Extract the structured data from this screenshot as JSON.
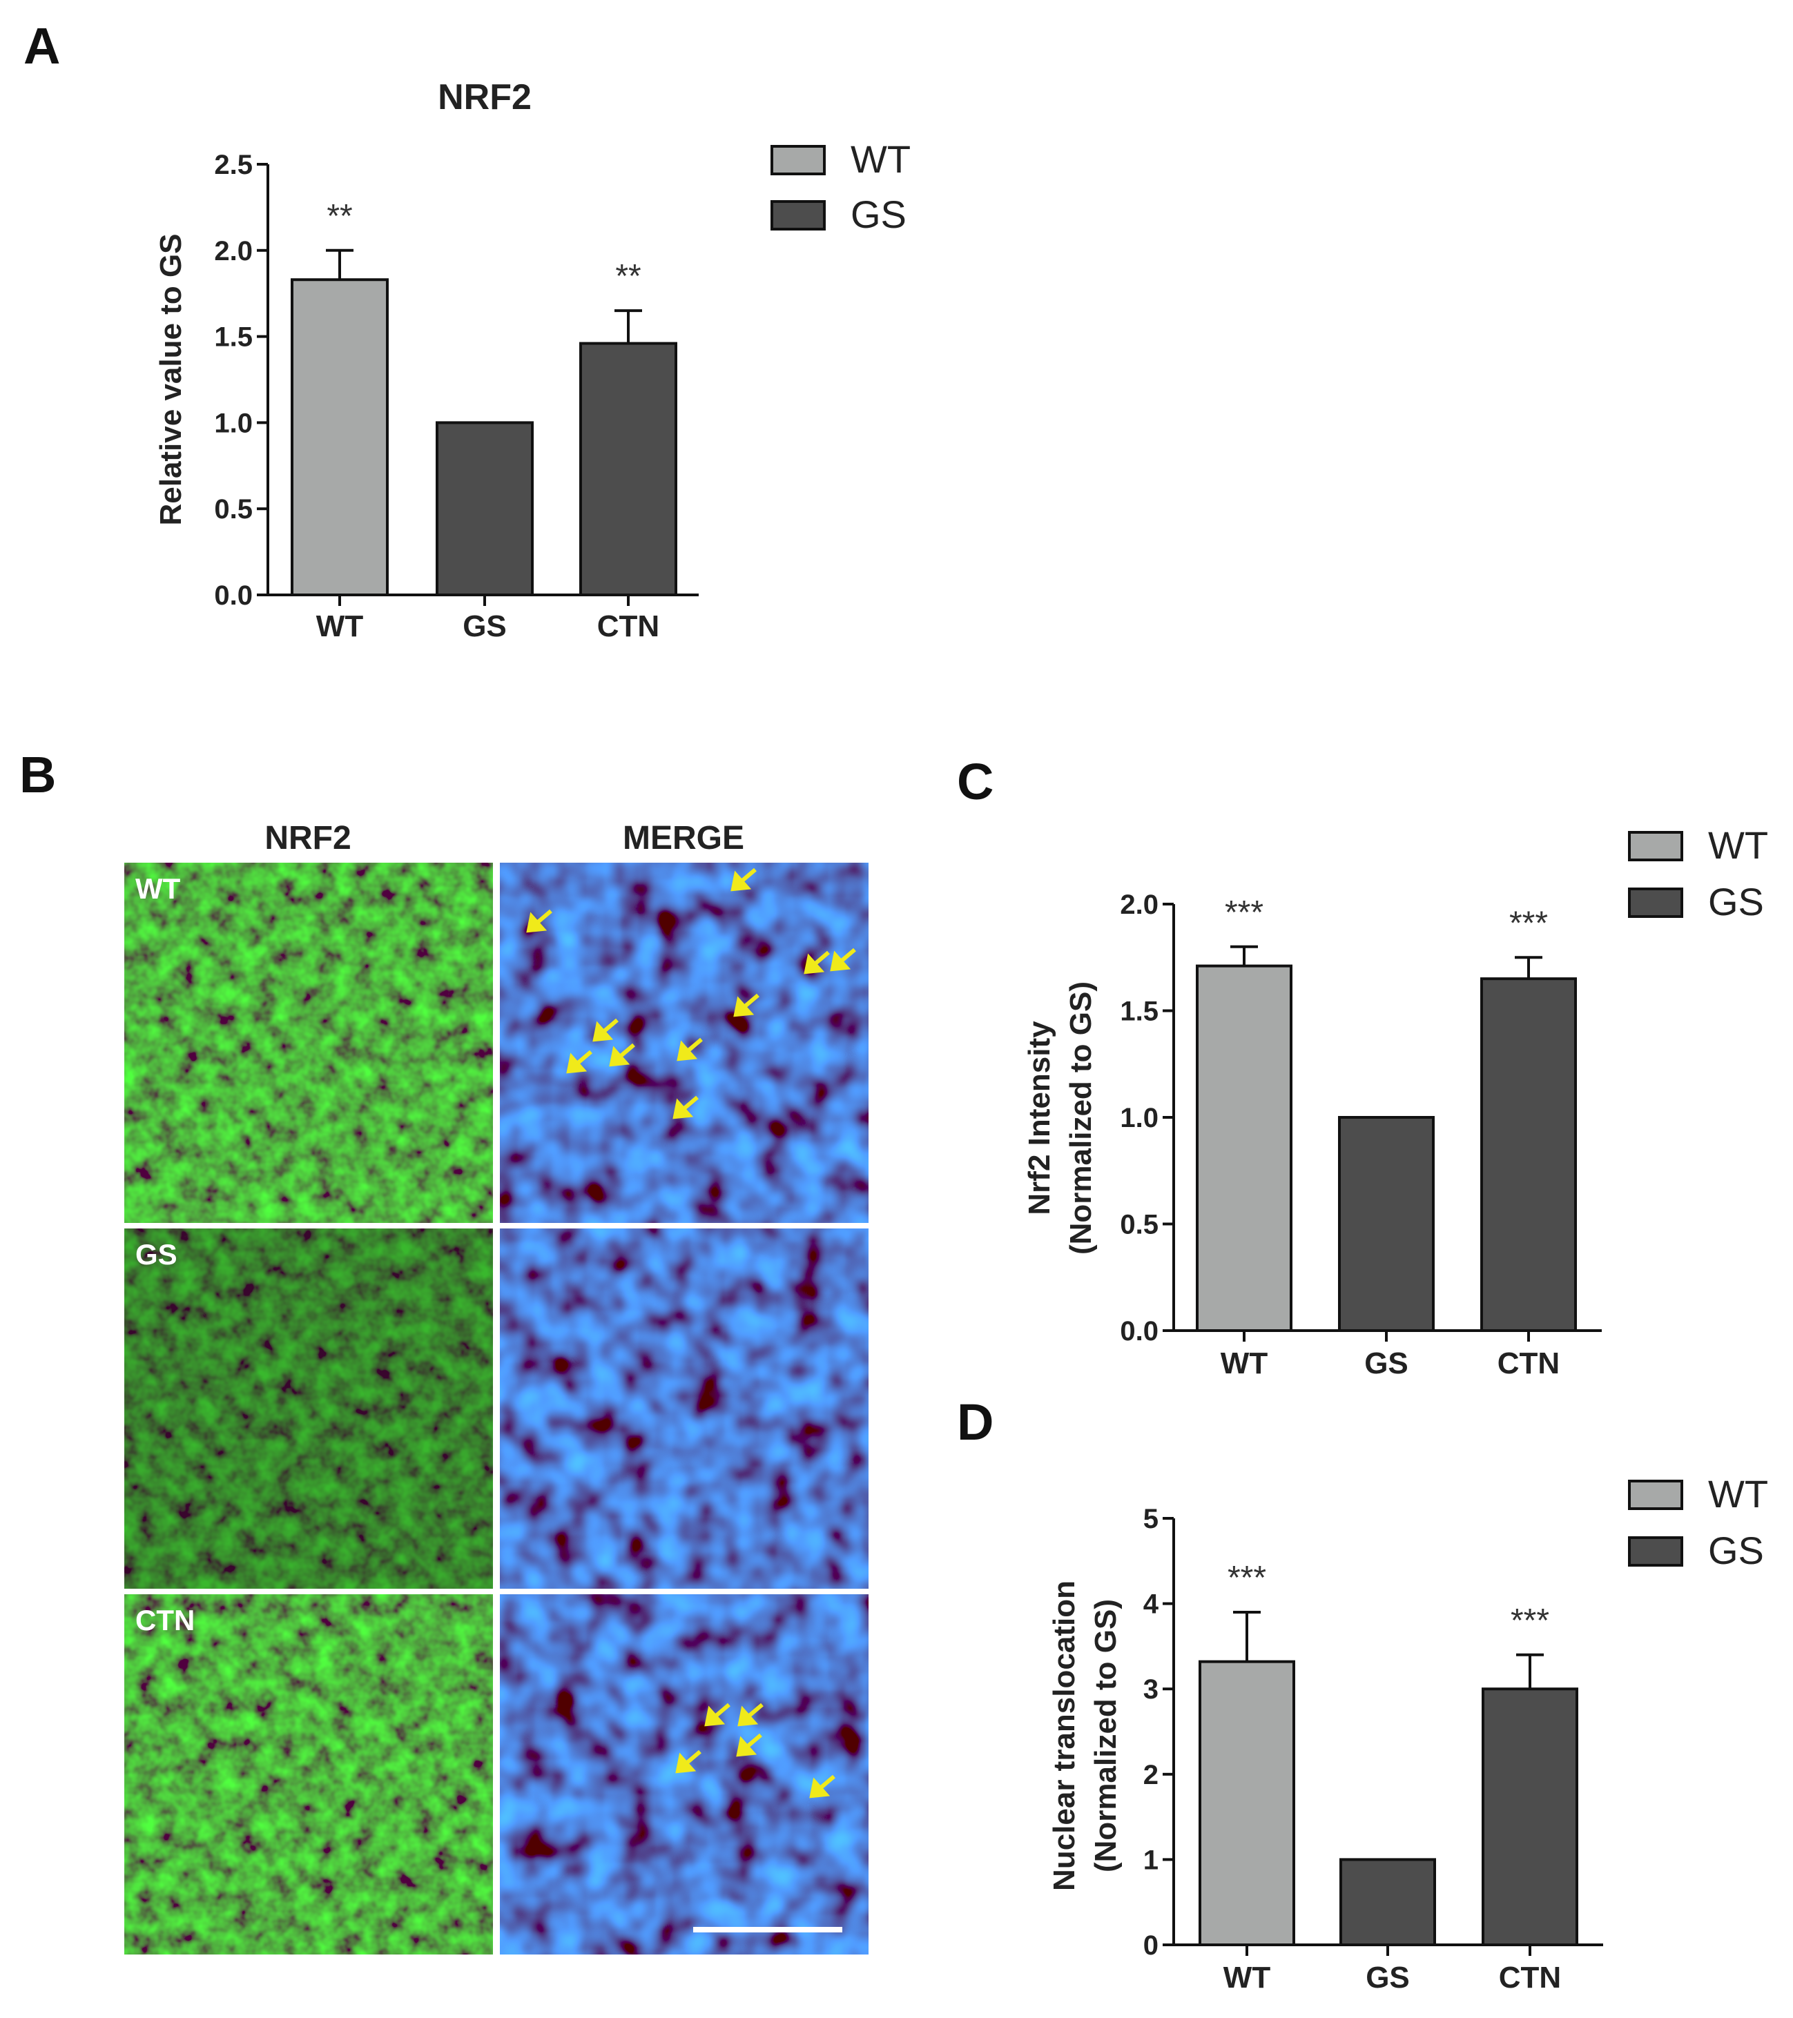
{
  "panel_letters": {
    "a": "A",
    "b": "B",
    "c": "C",
    "d": "D"
  },
  "colors": {
    "wt": "#a7a9a8",
    "gs": "#4d4d4d",
    "green": "#22c32a",
    "blue": "#1e3fd8",
    "arrow": "#f0ea1a"
  },
  "image_panel": {
    "col_headers": [
      "NRF2",
      "MERGE"
    ],
    "row_labels": [
      "WT",
      "GS",
      "CTN"
    ]
  },
  "chart_data": [
    {
      "type": "bar",
      "title": "NRF2",
      "ylabel": "Relative value to GS",
      "xlabel": "",
      "categories": [
        "WT",
        "GS",
        "CTN"
      ],
      "values": [
        1.83,
        1.0,
        1.46
      ],
      "errors": [
        0.17,
        0.0,
        0.19
      ],
      "bar_groups": [
        "WT",
        "GS",
        "GS"
      ],
      "significance": [
        "**",
        "",
        "**"
      ],
      "ylim": [
        0,
        2.5
      ],
      "yticks": [
        "0.0",
        "0.5",
        "1.0",
        "1.5",
        "2.0",
        "2.5"
      ],
      "legend": [
        "WT",
        "GS"
      ],
      "legend_position": "top-right",
      "grid": false
    },
    {
      "type": "bar",
      "title": "",
      "ylabel": "Nrf2 Intensity",
      "ylabel2": "(Normalized to GS)",
      "xlabel": "",
      "categories": [
        "WT",
        "GS",
        "CTN"
      ],
      "values": [
        1.71,
        1.0,
        1.65
      ],
      "errors": [
        0.09,
        0.0,
        0.1
      ],
      "bar_groups": [
        "WT",
        "GS",
        "GS"
      ],
      "significance": [
        "***",
        "",
        "***"
      ],
      "ylim": [
        0,
        2.0
      ],
      "yticks": [
        "0.0",
        "0.5",
        "1.0",
        "1.5",
        "2.0"
      ],
      "legend": [
        "WT",
        "GS"
      ],
      "legend_position": "top-right",
      "grid": false
    },
    {
      "type": "bar",
      "title": "",
      "ylabel": "Nuclear translocation",
      "ylabel2": "(Normalized to GS)",
      "xlabel": "",
      "categories": [
        "WT",
        "GS",
        "CTN"
      ],
      "values": [
        3.32,
        1.0,
        3.0
      ],
      "errors": [
        0.58,
        0.0,
        0.4
      ],
      "bar_groups": [
        "WT",
        "GS",
        "GS"
      ],
      "significance": [
        "***",
        "",
        "***"
      ],
      "ylim": [
        0,
        5
      ],
      "yticks": [
        "0",
        "1",
        "2",
        "3",
        "4",
        "5"
      ],
      "legend": [
        "WT",
        "GS"
      ],
      "legend_position": "top-right",
      "grid": false
    }
  ]
}
